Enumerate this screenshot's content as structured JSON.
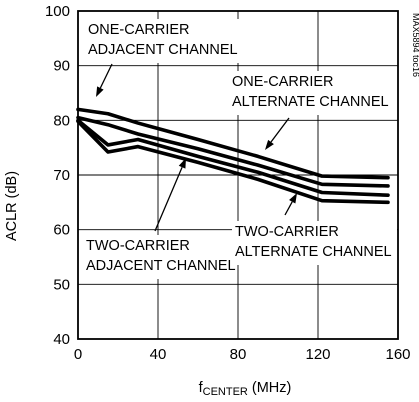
{
  "chart_data": {
    "type": "line",
    "xlabel": {
      "base": "f",
      "sub": "CENTER",
      "rest": " (MHz)"
    },
    "ylabel": "ACLR (dB)",
    "xlim": [
      0,
      160
    ],
    "ylim": [
      40,
      100
    ],
    "xticks": [
      0,
      40,
      80,
      120,
      160
    ],
    "yticks": [
      40,
      50,
      60,
      70,
      80,
      90,
      100
    ],
    "grid": true,
    "side_id": "MAX5894 toc16",
    "series": [
      {
        "name": "ONE-CARRIER ALTERNATE CHANNEL",
        "x": [
          0,
          15,
          30,
          60,
          90,
          122,
          155
        ],
        "y": [
          82,
          81.2,
          79.5,
          76.5,
          73.4,
          69.8,
          69.5
        ]
      },
      {
        "name": "ONE-CARRIER ADJACENT CHANNEL",
        "x": [
          0,
          15,
          30,
          60,
          90,
          122,
          155
        ],
        "y": [
          80.5,
          79.2,
          77.5,
          74.8,
          71.8,
          68.3,
          68.0
        ]
      },
      {
        "name": "TWO-CARRIER ALTERNATE CHANNEL",
        "x": [
          0,
          15,
          30,
          60,
          90,
          122,
          155
        ],
        "y": [
          80,
          75.5,
          76.5,
          73.4,
          70.5,
          66.8,
          66.3
        ]
      },
      {
        "name": "TWO-CARRIER ADJACENT CHANNEL",
        "x": [
          0,
          15,
          30,
          60,
          90,
          122,
          155
        ],
        "y": [
          79.8,
          74.2,
          75.2,
          72.3,
          69.2,
          65.3,
          65.0
        ]
      }
    ],
    "annotations": [
      {
        "lines": [
          "ONE-CARRIER",
          "ADJACENT CHANNEL"
        ]
      },
      {
        "lines": [
          "ONE-CARRIER",
          "ALTERNATE CHANNEL"
        ]
      },
      {
        "lines": [
          "TWO-CARRIER",
          "ADJACENT CHANNEL"
        ]
      },
      {
        "lines": [
          "TWO-CARRIER",
          "ALTERNATE CHANNEL"
        ]
      }
    ]
  }
}
